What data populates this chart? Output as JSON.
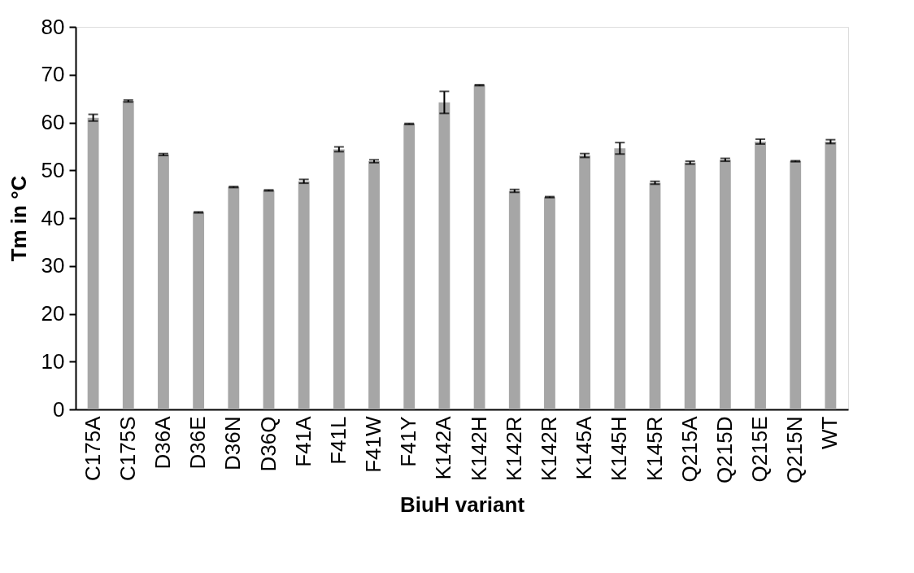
{
  "chart_data": {
    "type": "bar",
    "xlabel": "BiuH variant",
    "ylabel": "Tm in °C",
    "categories": [
      "C175A",
      "C175S",
      "D36A",
      "D36E",
      "D36N",
      "D36Q",
      "F41A",
      "F41L",
      "F41W",
      "F41Y",
      "K142A",
      "K142H",
      "K142R",
      "K142R",
      "K145A",
      "K145H",
      "K145R",
      "Q215A",
      "Q215D",
      "Q215E",
      "Q215N",
      "WT"
    ],
    "values": [
      61.0,
      64.5,
      53.3,
      41.2,
      46.5,
      45.8,
      47.7,
      54.4,
      51.9,
      59.7,
      64.2,
      67.8,
      45.7,
      44.4,
      53.1,
      54.6,
      47.4,
      51.6,
      52.2,
      56.0,
      51.9,
      56.0
    ],
    "errors": [
      0.7,
      0.2,
      0.2,
      0.1,
      0.1,
      0.1,
      0.4,
      0.5,
      0.3,
      0.1,
      2.3,
      0.1,
      0.3,
      0.1,
      0.4,
      1.2,
      0.3,
      0.3,
      0.3,
      0.5,
      0.1,
      0.4
    ],
    "color": "#a6a6a6",
    "ylim": [
      0,
      80
    ],
    "yticks": [
      0,
      10,
      20,
      30,
      40,
      50,
      60,
      70,
      80
    ],
    "grid": false
  }
}
